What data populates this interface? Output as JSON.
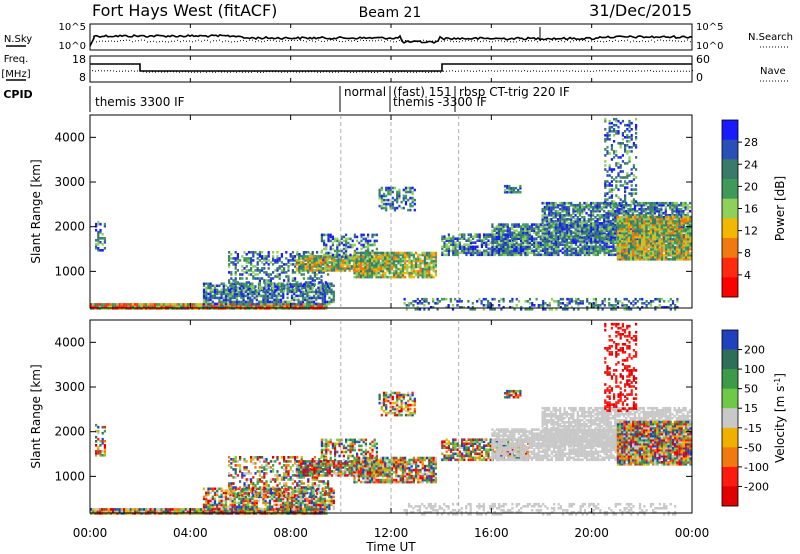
{
  "header": {
    "station": "Fort Hays West (fitACF)",
    "beam": "Beam 21",
    "date": "31/Dec/2015"
  },
  "left_labels": {
    "nsky": "N.Sky",
    "freq": "Freq.",
    "freq_unit": "[MHz]",
    "cpid": "CPID"
  },
  "right_labels": {
    "nsearch": "N.Search",
    "nave": "Nave"
  },
  "nsky_ticks": [
    "10^5",
    "10^0"
  ],
  "nsearch_ticks": [
    "10^5",
    "10^0"
  ],
  "freq_ticks": [
    "18",
    "8"
  ],
  "nave_ticks": [
    "60",
    "0"
  ],
  "cpid_labels": [
    "themis 3300 IF",
    "normal",
    "(fast) 151",
    "themis -3300 IF",
    "rbsp CT-trig 220 IF"
  ],
  "x_ticks": [
    "00:00",
    "04:00",
    "08:00",
    "12:00",
    "16:00",
    "20:00",
    "00:00"
  ],
  "xlabel": "Time UT",
  "chart_data": [
    {
      "type": "heatmap",
      "name": "power",
      "ylabel": "Slant Range [km]",
      "ylim": [
        180,
        4500
      ],
      "yticks": [
        "1000",
        "2000",
        "3000",
        "4000"
      ],
      "colorbar_label": "Power [dB]",
      "colorbar_ticks": [
        "28",
        "24",
        "20",
        "16",
        "12",
        "8",
        "4"
      ],
      "colors": [
        "#1a1aff",
        "#2a50b8",
        "#3a7a6a",
        "#3f9a5a",
        "#8ed05a",
        "#f0b800",
        "#f07a10",
        "#ff2a10",
        "#ff0000"
      ]
    },
    {
      "type": "heatmap",
      "name": "velocity",
      "ylabel": "Slant Range [km]",
      "ylim": [
        180,
        4500
      ],
      "yticks": [
        "1000",
        "2000",
        "3000",
        "4000"
      ],
      "colorbar_label": "Velocity [m s",
      "colorbar_label_sup": "-1",
      "colorbar_label_end": "]",
      "colorbar_ticks": [
        "200",
        "100",
        "50",
        "15",
        "-15",
        "-50",
        "-100",
        "-200"
      ],
      "colors": [
        "#2040c0",
        "#2f6f5a",
        "#3c9a48",
        "#70c848",
        "#c8c8c8",
        "#f0b000",
        "#f07a10",
        "#ff1a10",
        "#e00000"
      ]
    }
  ]
}
